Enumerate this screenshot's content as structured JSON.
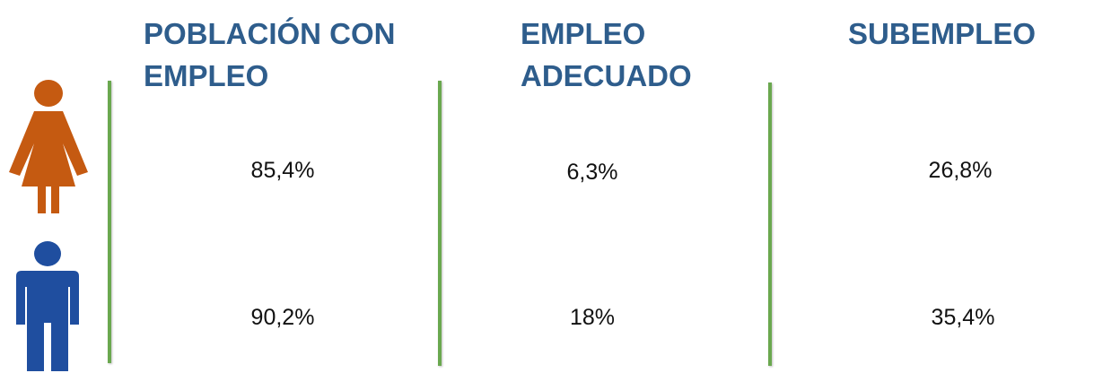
{
  "columns": [
    {
      "header": "POBLACIÓN CON EMPLEO",
      "female": "85,4%",
      "male": "90,2%"
    },
    {
      "header": "EMPLEO ADECUADO",
      "female": "6,3%",
      "male": "18%"
    },
    {
      "header": "SUBEMPLEO",
      "female": "26,8%",
      "male": "35,4%"
    }
  ]
}
